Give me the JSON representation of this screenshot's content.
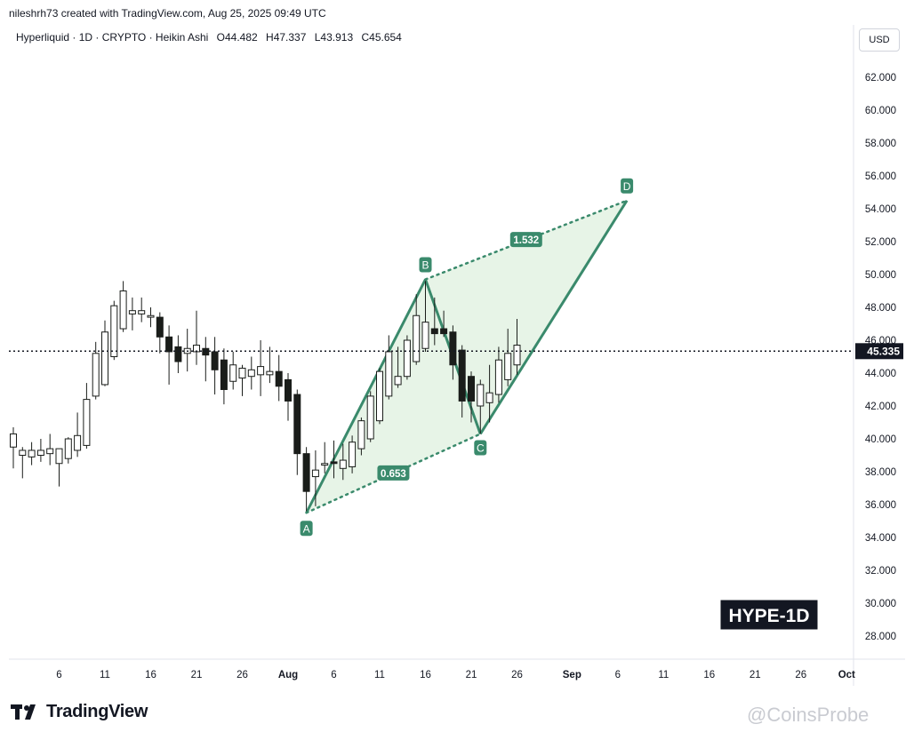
{
  "credit_text": "nileshrh73 created with TradingView.com, Aug 25, 2025 09:49 UTC",
  "legend": {
    "symbol": "Hyperliquid · 1D · CRYPTO · Heikin Ashi",
    "o": "O44.482",
    "h": "H47.337",
    "l": "L43.913",
    "c": "C45.654"
  },
  "currency_button": "USD",
  "footer_brand": "TradingView",
  "watermark_text": "@CoinsProbe",
  "colors": {
    "pattern_green": "#3a8a6c",
    "pattern_fill": "#e3f2e3",
    "candle_dark": "#1a1d1a",
    "text": "#131722"
  },
  "chart_data": {
    "type": "candlestick",
    "title": "HYPE-1D",
    "price_axis": {
      "ticks": [
        "28.000",
        "30.000",
        "32.000",
        "34.000",
        "36.000",
        "38.000",
        "40.000",
        "42.000",
        "44.000",
        "46.000",
        "48.000",
        "50.000",
        "52.000",
        "54.000",
        "56.000",
        "58.000",
        "60.000",
        "62.000"
      ],
      "tick_values": [
        28,
        30,
        32,
        34,
        36,
        38,
        40,
        42,
        44,
        46,
        48,
        50,
        52,
        54,
        56,
        58,
        60,
        62
      ],
      "current_price_label": "45.335",
      "current_price": 45.335
    },
    "time_axis": {
      "labels": [
        "6",
        "11",
        "16",
        "21",
        "26",
        "Aug",
        "6",
        "11",
        "16",
        "21",
        "26",
        "Sep",
        "6",
        "11",
        "16",
        "21",
        "26",
        "Oct"
      ],
      "label_days": [
        5,
        10,
        15,
        20,
        25,
        30,
        35,
        40,
        45,
        50,
        55,
        61,
        66,
        71,
        76,
        81,
        86,
        91
      ]
    },
    "candles": [
      {
        "t": 0,
        "o": 39.5,
        "h": 40.7,
        "l": 38.2,
        "c": 40.3
      },
      {
        "t": 1,
        "o": 39.0,
        "h": 39.5,
        "l": 37.6,
        "c": 39.3
      },
      {
        "t": 2,
        "o": 38.9,
        "h": 39.8,
        "l": 38.4,
        "c": 39.3
      },
      {
        "t": 3,
        "o": 39.0,
        "h": 40.0,
        "l": 38.6,
        "c": 39.3
      },
      {
        "t": 4,
        "o": 39.1,
        "h": 40.3,
        "l": 38.4,
        "c": 39.4
      },
      {
        "t": 5,
        "o": 38.5,
        "h": 39.4,
        "l": 37.1,
        "c": 39.4
      },
      {
        "t": 6,
        "o": 38.8,
        "h": 40.1,
        "l": 38.5,
        "c": 40.0
      },
      {
        "t": 7,
        "o": 39.3,
        "h": 41.6,
        "l": 38.9,
        "c": 40.2
      },
      {
        "t": 8,
        "o": 39.6,
        "h": 43.4,
        "l": 39.4,
        "c": 42.4
      },
      {
        "t": 9,
        "o": 42.6,
        "h": 45.9,
        "l": 42.4,
        "c": 45.2
      },
      {
        "t": 10,
        "o": 43.3,
        "h": 47.2,
        "l": 43.2,
        "c": 46.5
      },
      {
        "t": 11,
        "o": 45.0,
        "h": 48.4,
        "l": 44.8,
        "c": 48.1
      },
      {
        "t": 12,
        "o": 46.7,
        "h": 49.6,
        "l": 46.5,
        "c": 49.0
      },
      {
        "t": 13,
        "o": 47.6,
        "h": 48.6,
        "l": 46.6,
        "c": 47.8
      },
      {
        "t": 14,
        "o": 47.6,
        "h": 48.6,
        "l": 47.1,
        "c": 47.8
      },
      {
        "t": 15,
        "o": 47.4,
        "h": 48.0,
        "l": 46.8,
        "c": 47.5
      },
      {
        "t": 16,
        "o": 47.4,
        "h": 47.7,
        "l": 45.2,
        "c": 46.2
      },
      {
        "t": 17,
        "o": 46.2,
        "h": 46.9,
        "l": 43.3,
        "c": 45.3
      },
      {
        "t": 18,
        "o": 45.6,
        "h": 46.3,
        "l": 44.0,
        "c": 44.7
      },
      {
        "t": 19,
        "o": 45.2,
        "h": 46.7,
        "l": 44.1,
        "c": 45.5
      },
      {
        "t": 20,
        "o": 45.3,
        "h": 47.8,
        "l": 44.5,
        "c": 45.7
      },
      {
        "t": 21,
        "o": 45.5,
        "h": 46.2,
        "l": 43.5,
        "c": 45.1
      },
      {
        "t": 22,
        "o": 45.3,
        "h": 46.2,
        "l": 42.7,
        "c": 44.2
      },
      {
        "t": 23,
        "o": 44.8,
        "h": 45.5,
        "l": 42.1,
        "c": 43.0
      },
      {
        "t": 24,
        "o": 43.5,
        "h": 45.3,
        "l": 43.0,
        "c": 44.5
      },
      {
        "t": 25,
        "o": 43.7,
        "h": 44.5,
        "l": 42.6,
        "c": 44.3
      },
      {
        "t": 26,
        "o": 43.8,
        "h": 45.0,
        "l": 43.0,
        "c": 44.2
      },
      {
        "t": 27,
        "o": 43.9,
        "h": 46.0,
        "l": 42.6,
        "c": 44.4
      },
      {
        "t": 28,
        "o": 43.9,
        "h": 45.6,
        "l": 43.4,
        "c": 44.1
      },
      {
        "t": 29,
        "o": 44.1,
        "h": 45.1,
        "l": 42.3,
        "c": 43.2
      },
      {
        "t": 30,
        "o": 43.6,
        "h": 44.0,
        "l": 41.1,
        "c": 42.3
      },
      {
        "t": 31,
        "o": 42.7,
        "h": 43.0,
        "l": 37.8,
        "c": 39.1
      },
      {
        "t": 32,
        "o": 39.1,
        "h": 39.5,
        "l": 35.6,
        "c": 36.8
      },
      {
        "t": 33,
        "o": 37.7,
        "h": 39.3,
        "l": 35.9,
        "c": 38.1
      },
      {
        "t": 34,
        "o": 38.4,
        "h": 39.8,
        "l": 37.9,
        "c": 38.5
      },
      {
        "t": 35,
        "o": 38.6,
        "h": 39.9,
        "l": 37.6,
        "c": 38.5
      },
      {
        "t": 36,
        "o": 38.2,
        "h": 39.7,
        "l": 37.5,
        "c": 38.7
      },
      {
        "t": 37,
        "o": 38.3,
        "h": 40.2,
        "l": 37.9,
        "c": 39.8
      },
      {
        "t": 38,
        "o": 39.4,
        "h": 41.3,
        "l": 39.0,
        "c": 41.1
      },
      {
        "t": 39,
        "o": 40.0,
        "h": 42.9,
        "l": 39.8,
        "c": 42.6
      },
      {
        "t": 40,
        "o": 41.1,
        "h": 44.3,
        "l": 40.9,
        "c": 44.1
      },
      {
        "t": 41,
        "o": 42.6,
        "h": 46.3,
        "l": 42.4,
        "c": 45.3
      },
      {
        "t": 42,
        "o": 43.3,
        "h": 45.6,
        "l": 43.1,
        "c": 43.8
      },
      {
        "t": 43,
        "o": 43.8,
        "h": 46.3,
        "l": 43.6,
        "c": 46.0
      },
      {
        "t": 44,
        "o": 44.7,
        "h": 48.8,
        "l": 44.5,
        "c": 47.5
      },
      {
        "t": 45,
        "o": 45.5,
        "h": 49.6,
        "l": 45.3,
        "c": 47.1
      },
      {
        "t": 46,
        "o": 46.7,
        "h": 48.6,
        "l": 45.7,
        "c": 46.4
      },
      {
        "t": 47,
        "o": 46.7,
        "h": 47.8,
        "l": 46.2,
        "c": 46.4
      },
      {
        "t": 48,
        "o": 46.5,
        "h": 46.9,
        "l": 43.6,
        "c": 44.5
      },
      {
        "t": 49,
        "o": 45.4,
        "h": 45.7,
        "l": 41.3,
        "c": 42.3
      },
      {
        "t": 50,
        "o": 43.8,
        "h": 44.1,
        "l": 41.0,
        "c": 42.3
      },
      {
        "t": 51,
        "o": 42.0,
        "h": 43.6,
        "l": 40.3,
        "c": 43.3
      },
      {
        "t": 52,
        "o": 42.2,
        "h": 44.5,
        "l": 41.0,
        "c": 42.8
      },
      {
        "t": 53,
        "o": 42.7,
        "h": 45.6,
        "l": 42.2,
        "c": 44.8
      },
      {
        "t": 54,
        "o": 43.6,
        "h": 46.7,
        "l": 43.2,
        "c": 45.2
      },
      {
        "t": 55,
        "o": 44.5,
        "h": 47.3,
        "l": 43.9,
        "c": 45.7
      }
    ],
    "pattern": {
      "points": [
        {
          "label": "A",
          "t": 32,
          "price": 35.5
        },
        {
          "label": "B",
          "t": 45,
          "price": 49.7
        },
        {
          "label": "C",
          "t": 51,
          "price": 40.3
        },
        {
          "label": "D",
          "t": 67,
          "price": 54.5
        }
      ],
      "ratios": [
        {
          "label": "0.653",
          "from": "A",
          "to": "C"
        },
        {
          "label": "1.532",
          "from": "B",
          "to": "D"
        }
      ]
    }
  }
}
